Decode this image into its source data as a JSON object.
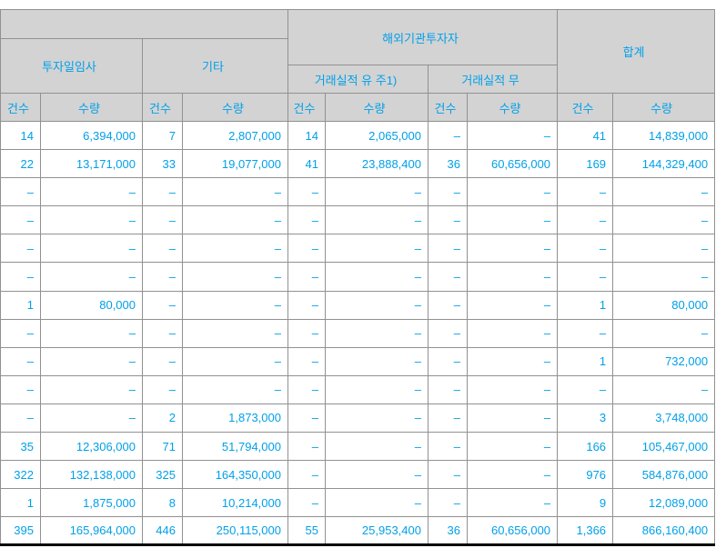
{
  "table": {
    "header": {
      "cropped_top_left": "",
      "groups": [
        {
          "label": "투자일임사"
        },
        {
          "label": "기타"
        },
        {
          "label": "해외기관투자자",
          "subgroups": [
            "거래실적 유 주1)",
            "거래실적 무"
          ]
        },
        {
          "label": "합계"
        }
      ],
      "col_headers": [
        "건수",
        "수량",
        "건수",
        "수량",
        "건수",
        "수량",
        "건수",
        "수량",
        "건수",
        "수량"
      ]
    },
    "rows": [
      [
        "14",
        "6,394,000",
        "7",
        "2,807,000",
        "14",
        "2,065,000",
        "–",
        "–",
        "41",
        "14,839,000"
      ],
      [
        "22",
        "13,171,000",
        "33",
        "19,077,000",
        "41",
        "23,888,400",
        "36",
        "60,656,000",
        "169",
        "144,329,400"
      ],
      [
        "–",
        "–",
        "–",
        "–",
        "–",
        "–",
        "–",
        "–",
        "–",
        "–"
      ],
      [
        "–",
        "–",
        "–",
        "–",
        "–",
        "–",
        "–",
        "–",
        "–",
        "–"
      ],
      [
        "–",
        "–",
        "–",
        "–",
        "–",
        "–",
        "–",
        "–",
        "–",
        "–"
      ],
      [
        "–",
        "–",
        "–",
        "–",
        "–",
        "–",
        "–",
        "–",
        "–",
        "–"
      ],
      [
        "1",
        "80,000",
        "–",
        "–",
        "–",
        "–",
        "–",
        "–",
        "1",
        "80,000"
      ],
      [
        "–",
        "–",
        "–",
        "–",
        "–",
        "–",
        "–",
        "–",
        "–",
        "–"
      ],
      [
        "–",
        "–",
        "–",
        "–",
        "–",
        "–",
        "–",
        "–",
        "1",
        "732,000"
      ],
      [
        "–",
        "–",
        "–",
        "–",
        "–",
        "–",
        "–",
        "–",
        "–",
        "–"
      ],
      [
        "–",
        "–",
        "2",
        "1,873,000",
        "–",
        "–",
        "–",
        "–",
        "3",
        "3,748,000"
      ],
      [
        "35",
        "12,306,000",
        "71",
        "51,794,000",
        "–",
        "–",
        "–",
        "–",
        "166",
        "105,467,000"
      ],
      [
        "322",
        "132,138,000",
        "325",
        "164,350,000",
        "–",
        "–",
        "–",
        "–",
        "976",
        "584,876,000"
      ],
      [
        "1",
        "1,875,000",
        "8",
        "10,214,000",
        "–",
        "–",
        "–",
        "–",
        "9",
        "12,089,000"
      ],
      [
        "395",
        "165,964,000",
        "446",
        "250,115,000",
        "55",
        "25,953,400",
        "36",
        "60,656,000",
        "1,366",
        "866,160,400"
      ]
    ]
  },
  "colors": {
    "accent_text": "#00a0e9",
    "header_background": "#d3d3d3",
    "grid_border": "#919191",
    "bottom_border": "#000000"
  }
}
